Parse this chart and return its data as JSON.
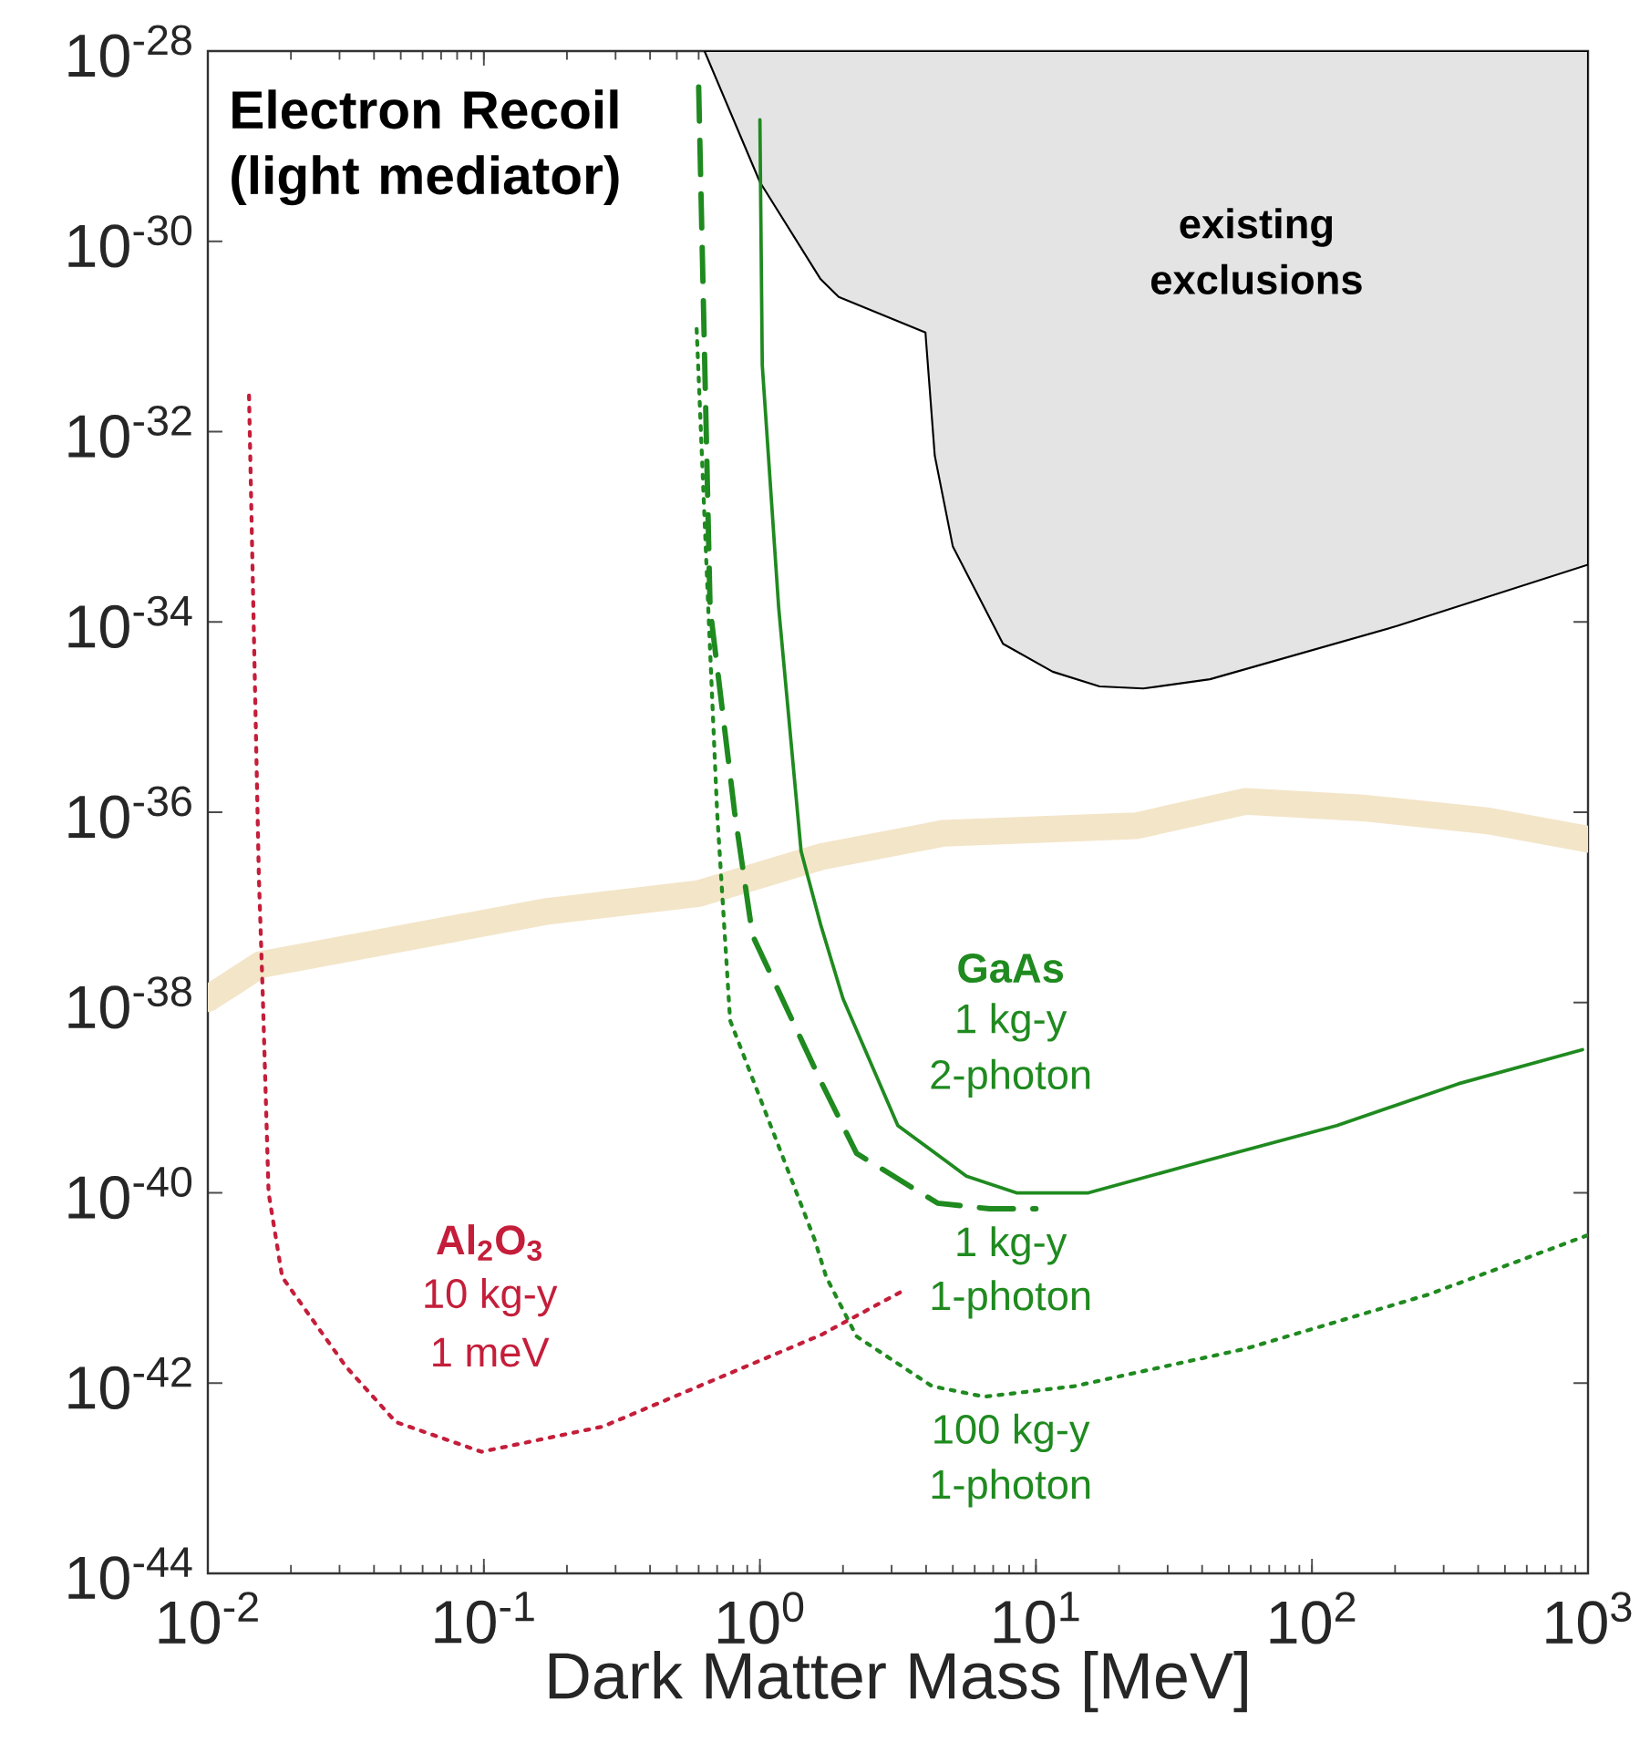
{
  "chart_data": {
    "type": "line",
    "title": "Electron Recoil (light mediator)",
    "xlabel": "Dark Matter Mass [MeV]",
    "log": "xy",
    "xlim": [
      0.01,
      1000
    ],
    "ylim": [
      1e-44,
      1e-28
    ],
    "xticks": [
      {
        "value": 0.01,
        "label": "10$^{-2}$"
      },
      {
        "value": 0.1,
        "label": "10$^{-1}$"
      },
      {
        "value": 1,
        "label": "10$^{0}$"
      },
      {
        "value": 10,
        "label": "10$^{1}$"
      },
      {
        "value": 100,
        "label": "10$^{2}$"
      },
      {
        "value": 1000,
        "label": "10$^{3}$"
      }
    ],
    "yticks": [
      {
        "value": 1e-44,
        "label": "10$^{-44}$"
      },
      {
        "value": 1e-42,
        "label": "10$^{-42}$"
      },
      {
        "value": 1e-40,
        "label": "10$^{-40}$"
      },
      {
        "value": 1e-38,
        "label": "10$^{-38}$"
      },
      {
        "value": 1e-36,
        "label": "10$^{-36}$"
      },
      {
        "value": 1e-34,
        "label": "10$^{-34}$"
      },
      {
        "value": 1e-32,
        "label": "10$^{-32}$"
      },
      {
        "value": 1e-30,
        "label": "10$^{-30}$"
      },
      {
        "value": 1e-28,
        "label": "10$^{-28}$"
      }
    ],
    "series": [
      {
        "type": "area",
        "color": "#e4e4e4",
        "x": [
          0.63,
          1.0,
          1.66,
          1.93,
          3.98,
          4.0,
          4.3,
          5.0,
          7.6,
          11.5,
          17,
          24.5,
          42.7,
          204,
          1000,
          1000
        ],
        "values": [
          1e-28,
          4.2e-30,
          4e-31,
          2.6e-31,
          1.1e-31,
          8.9e-32,
          5.6e-33,
          6.2e-34,
          5.9e-35,
          3e-35,
          2.1e-35,
          2e-35,
          2.5e-35,
          9.1e-35,
          4e-34,
          1e-28
        ]
      },
      {
        "color": "#f3e5c8",
        "line_style": "solid",
        "x": [
          0.01,
          0.0155,
          0.17,
          0.6,
          1.66,
          4.6,
          23,
          57.5,
          158,
          437,
          1000
        ],
        "values": [
          1.1e-38,
          2.5e-38,
          9.1e-38,
          1.4e-37,
          3.4e-37,
          6e-37,
          7.2e-37,
          1.3e-36,
          1.1e-36,
          8.1e-37,
          5.2e-37
        ]
      },
      {
        "color": "#1f8a1f",
        "line_style": "solid",
        "x": [
          1.0,
          1.02,
          1.17,
          1.41,
          1.66,
          2.0,
          3.16,
          5.6,
          8.5,
          15.5,
          34.7,
          123,
          339,
          955
        ],
        "values": [
          1.9e-29,
          5e-32,
          1.4e-34,
          3.9e-37,
          6.6e-38,
          1.1e-38,
          5.1e-40,
          1.5e-40,
          1e-40,
          1e-40,
          1.9e-40,
          5.1e-40,
          1.4e-39,
          3.2e-39
        ]
      },
      {
        "color": "#1f8a1f",
        "line_style": "dashed",
        "x": [
          0.6,
          0.66,
          0.81,
          0.94,
          1.66,
          2.24,
          4.4,
          6.8,
          10
        ],
        "values": [
          4.2e-29,
          1.4e-34,
          1e-36,
          5.1e-38,
          1.5e-39,
          2.6e-40,
          7.8e-41,
          6.8e-41,
          6.8e-41
        ]
      },
      {
        "color": "#1f8a1f",
        "line_style": "dotted",
        "x": [
          0.59,
          0.65,
          0.7,
          0.78,
          1.58,
          1.74,
          2.24,
          4.2,
          6.5,
          13.8,
          57.5,
          263,
          1000
        ],
        "values": [
          1.2e-31,
          1.4e-34,
          1e-36,
          6.5e-39,
          3.2e-41,
          1.3e-41,
          3.1e-42,
          9.3e-43,
          7.2e-43,
          9.3e-43,
          2.3e-42,
          8.5e-42,
          3.6e-41
        ]
      },
      {
        "color": "#c41e3a",
        "line_style": "dotted",
        "x": [
          0.0141,
          0.0153,
          0.0158,
          0.0166,
          0.0186,
          0.0316,
          0.048,
          0.098,
          0.27,
          1.66,
          3.4
        ],
        "values": [
          2.4e-32,
          2.2e-37,
          1.3e-38,
          1e-40,
          1.3e-41,
          1.5e-42,
          3.9e-43,
          1.9e-43,
          3.5e-43,
          3.2e-42,
          9.8e-42
        ]
      }
    ],
    "annotations": [
      "existing",
      "exclusions",
      "GaAs",
      "1 kg-y",
      "2-photon",
      "1 kg-y",
      "1-photon",
      "100 kg-y",
      "1-photon",
      "Al$_{2}$O$_{3}$",
      "10 kg-y",
      "1 meV"
    ]
  }
}
